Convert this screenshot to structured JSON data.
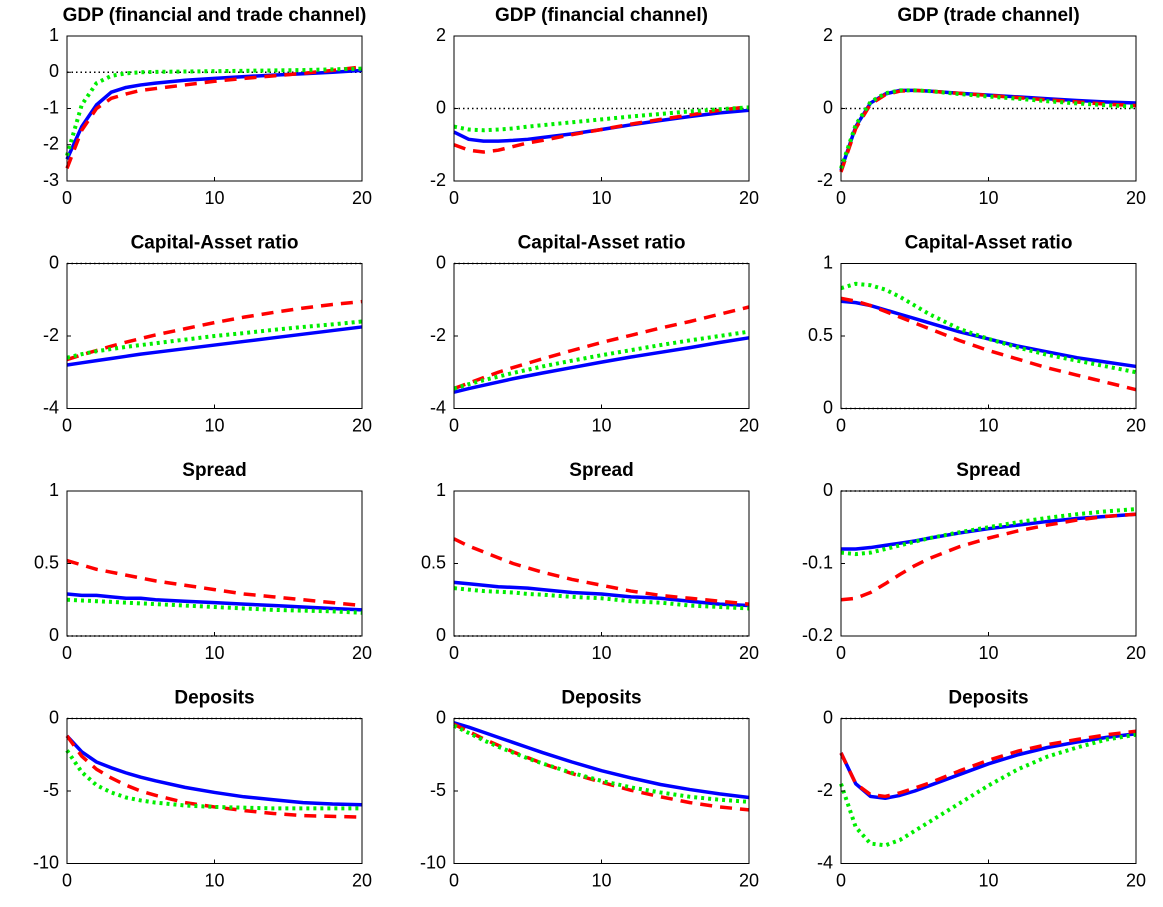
{
  "chart_data": [
    {
      "type": "line",
      "title": "GDP (financial and trade channel)",
      "x": [
        0,
        1,
        2,
        3,
        4,
        5,
        6,
        8,
        10,
        12,
        14,
        16,
        18,
        20
      ],
      "xlim": [
        0,
        20
      ],
      "xticks": [
        0,
        10,
        20
      ],
      "ylim": [
        -3,
        1
      ],
      "yticks": [
        -3,
        -2,
        -1,
        0,
        1
      ],
      "zero_line": true,
      "series": [
        {
          "color": "#0000ff",
          "dash": "solid",
          "values": [
            -2.4,
            -1.5,
            -0.9,
            -0.55,
            -0.42,
            -0.35,
            -0.3,
            -0.22,
            -0.17,
            -0.12,
            -0.08,
            -0.04,
            0.0,
            0.05
          ]
        },
        {
          "color": "#ff0000",
          "dash": "dashed",
          "values": [
            -2.65,
            -1.6,
            -1.0,
            -0.72,
            -0.6,
            -0.5,
            -0.45,
            -0.35,
            -0.25,
            -0.17,
            -0.1,
            -0.03,
            0.05,
            0.15
          ]
        },
        {
          "color": "#00ee00",
          "dash": "dotted",
          "values": [
            -2.3,
            -0.9,
            -0.3,
            -0.1,
            -0.03,
            0,
            0.01,
            0.02,
            0.03,
            0.04,
            0.05,
            0.06,
            0.08,
            0.1
          ]
        }
      ]
    },
    {
      "type": "line",
      "title": "GDP (financial channel)",
      "x": [
        0,
        1,
        2,
        3,
        4,
        5,
        6,
        8,
        10,
        12,
        14,
        16,
        18,
        20
      ],
      "xlim": [
        0,
        20
      ],
      "xticks": [
        0,
        10,
        20
      ],
      "ylim": [
        -2,
        2
      ],
      "yticks": [
        -2,
        0,
        2
      ],
      "zero_line": true,
      "series": [
        {
          "color": "#0000ff",
          "dash": "solid",
          "values": [
            -0.65,
            -0.85,
            -0.9,
            -0.9,
            -0.88,
            -0.85,
            -0.8,
            -0.7,
            -0.58,
            -0.45,
            -0.33,
            -0.22,
            -0.12,
            -0.05
          ]
        },
        {
          "color": "#ff0000",
          "dash": "dashed",
          "values": [
            -1.0,
            -1.15,
            -1.2,
            -1.15,
            -1.05,
            -0.95,
            -0.88,
            -0.72,
            -0.58,
            -0.43,
            -0.3,
            -0.18,
            -0.05,
            0.05
          ]
        },
        {
          "color": "#00ee00",
          "dash": "dotted",
          "values": [
            -0.5,
            -0.58,
            -0.6,
            -0.58,
            -0.55,
            -0.5,
            -0.46,
            -0.38,
            -0.3,
            -0.22,
            -0.15,
            -0.08,
            -0.02,
            0.03
          ]
        }
      ]
    },
    {
      "type": "line",
      "title": "GDP (trade channel)",
      "x": [
        0,
        1,
        2,
        3,
        4,
        5,
        6,
        8,
        10,
        12,
        14,
        16,
        18,
        20
      ],
      "xlim": [
        0,
        20
      ],
      "xticks": [
        0,
        10,
        20
      ],
      "ylim": [
        -2,
        2
      ],
      "yticks": [
        -2,
        0,
        2
      ],
      "zero_line": true,
      "series": [
        {
          "color": "#0000ff",
          "dash": "solid",
          "values": [
            -1.7,
            -0.5,
            0.15,
            0.4,
            0.5,
            0.5,
            0.48,
            0.42,
            0.37,
            0.32,
            0.27,
            0.22,
            0.18,
            0.15
          ]
        },
        {
          "color": "#ff0000",
          "dash": "dashed",
          "values": [
            -1.75,
            -0.55,
            0.12,
            0.38,
            0.48,
            0.5,
            0.48,
            0.42,
            0.36,
            0.3,
            0.24,
            0.18,
            0.12,
            0.08
          ]
        },
        {
          "color": "#00ee00",
          "dash": "dotted",
          "values": [
            -1.65,
            -0.45,
            0.18,
            0.42,
            0.5,
            0.5,
            0.48,
            0.4,
            0.33,
            0.27,
            0.2,
            0.14,
            0.09,
            0.05
          ]
        }
      ]
    },
    {
      "type": "line",
      "title": "Capital-Asset ratio",
      "x": [
        0,
        1,
        2,
        3,
        4,
        5,
        6,
        8,
        10,
        12,
        14,
        16,
        18,
        20
      ],
      "xlim": [
        0,
        20
      ],
      "xticks": [
        0,
        10,
        20
      ],
      "ylim": [
        -4,
        0
      ],
      "yticks": [
        -4,
        -2,
        0
      ],
      "zero_line": true,
      "series": [
        {
          "color": "#0000ff",
          "dash": "solid",
          "values": [
            -2.8,
            -2.74,
            -2.68,
            -2.62,
            -2.56,
            -2.5,
            -2.45,
            -2.35,
            -2.25,
            -2.15,
            -2.05,
            -1.95,
            -1.85,
            -1.75
          ]
        },
        {
          "color": "#ff0000",
          "dash": "dashed",
          "values": [
            -2.65,
            -2.52,
            -2.4,
            -2.28,
            -2.17,
            -2.07,
            -1.97,
            -1.8,
            -1.63,
            -1.48,
            -1.35,
            -1.23,
            -1.13,
            -1.05
          ]
        },
        {
          "color": "#00ee00",
          "dash": "dotted",
          "values": [
            -2.6,
            -2.5,
            -2.42,
            -2.36,
            -2.3,
            -2.25,
            -2.2,
            -2.1,
            -2.0,
            -1.92,
            -1.83,
            -1.75,
            -1.68,
            -1.6
          ]
        }
      ]
    },
    {
      "type": "line",
      "title": "Capital-Asset ratio",
      "x": [
        0,
        1,
        2,
        3,
        4,
        5,
        6,
        8,
        10,
        12,
        14,
        16,
        18,
        20
      ],
      "xlim": [
        0,
        20
      ],
      "xticks": [
        0,
        10,
        20
      ],
      "ylim": [
        -4,
        0
      ],
      "yticks": [
        -4,
        -2,
        0
      ],
      "zero_line": true,
      "series": [
        {
          "color": "#0000ff",
          "dash": "solid",
          "values": [
            -3.55,
            -3.45,
            -3.36,
            -3.27,
            -3.18,
            -3.1,
            -3.02,
            -2.87,
            -2.72,
            -2.58,
            -2.45,
            -2.32,
            -2.18,
            -2.05
          ]
        },
        {
          "color": "#ff0000",
          "dash": "dashed",
          "values": [
            -3.45,
            -3.3,
            -3.15,
            -3.0,
            -2.87,
            -2.75,
            -2.63,
            -2.4,
            -2.18,
            -1.98,
            -1.78,
            -1.6,
            -1.4,
            -1.2
          ]
        },
        {
          "color": "#00ee00",
          "dash": "dotted",
          "values": [
            -3.45,
            -3.33,
            -3.22,
            -3.12,
            -3.02,
            -2.93,
            -2.84,
            -2.68,
            -2.53,
            -2.39,
            -2.25,
            -2.12,
            -2.0,
            -1.88
          ]
        }
      ]
    },
    {
      "type": "line",
      "title": "Capital-Asset ratio",
      "x": [
        0,
        1,
        2,
        3,
        4,
        5,
        6,
        8,
        10,
        12,
        14,
        16,
        18,
        20
      ],
      "xlim": [
        0,
        20
      ],
      "xticks": [
        0,
        10,
        20
      ],
      "ylim": [
        0,
        1
      ],
      "yticks": [
        0,
        0.5,
        1
      ],
      "zero_line": true,
      "series": [
        {
          "color": "#0000ff",
          "dash": "solid",
          "values": [
            0.74,
            0.73,
            0.71,
            0.68,
            0.65,
            0.62,
            0.59,
            0.53,
            0.48,
            0.43,
            0.39,
            0.35,
            0.32,
            0.29
          ]
        },
        {
          "color": "#ff0000",
          "dash": "dashed",
          "values": [
            0.76,
            0.74,
            0.71,
            0.67,
            0.63,
            0.59,
            0.55,
            0.47,
            0.4,
            0.34,
            0.28,
            0.23,
            0.18,
            0.13
          ]
        },
        {
          "color": "#00ee00",
          "dash": "dotted",
          "values": [
            0.83,
            0.86,
            0.85,
            0.82,
            0.77,
            0.71,
            0.65,
            0.55,
            0.48,
            0.42,
            0.37,
            0.33,
            0.29,
            0.25
          ]
        }
      ]
    },
    {
      "type": "line",
      "title": "Spread",
      "x": [
        0,
        1,
        2,
        3,
        4,
        5,
        6,
        8,
        10,
        12,
        14,
        16,
        18,
        20
      ],
      "xlim": [
        0,
        20
      ],
      "xticks": [
        0,
        10,
        20
      ],
      "ylim": [
        0,
        1
      ],
      "yticks": [
        0,
        0.5,
        1
      ],
      "zero_line": true,
      "series": [
        {
          "color": "#0000ff",
          "dash": "solid",
          "values": [
            0.29,
            0.28,
            0.28,
            0.27,
            0.26,
            0.26,
            0.25,
            0.24,
            0.23,
            0.22,
            0.21,
            0.2,
            0.19,
            0.18
          ]
        },
        {
          "color": "#ff0000",
          "dash": "dashed",
          "values": [
            0.52,
            0.49,
            0.46,
            0.44,
            0.42,
            0.4,
            0.38,
            0.35,
            0.32,
            0.29,
            0.27,
            0.25,
            0.23,
            0.21
          ]
        },
        {
          "color": "#00ee00",
          "dash": "dotted",
          "values": [
            0.25,
            0.245,
            0.24,
            0.235,
            0.23,
            0.225,
            0.22,
            0.21,
            0.2,
            0.19,
            0.18,
            0.175,
            0.17,
            0.16
          ]
        }
      ]
    },
    {
      "type": "line",
      "title": "Spread",
      "x": [
        0,
        1,
        2,
        3,
        4,
        5,
        6,
        8,
        10,
        12,
        14,
        16,
        18,
        20
      ],
      "xlim": [
        0,
        20
      ],
      "xticks": [
        0,
        10,
        20
      ],
      "ylim": [
        0,
        1
      ],
      "yticks": [
        0,
        0.5,
        1
      ],
      "zero_line": true,
      "series": [
        {
          "color": "#0000ff",
          "dash": "solid",
          "values": [
            0.37,
            0.36,
            0.35,
            0.34,
            0.335,
            0.33,
            0.32,
            0.3,
            0.29,
            0.27,
            0.26,
            0.24,
            0.22,
            0.21
          ]
        },
        {
          "color": "#ff0000",
          "dash": "dashed",
          "values": [
            0.67,
            0.62,
            0.58,
            0.54,
            0.5,
            0.47,
            0.44,
            0.39,
            0.35,
            0.31,
            0.28,
            0.26,
            0.24,
            0.22
          ]
        },
        {
          "color": "#00ee00",
          "dash": "dotted",
          "values": [
            0.33,
            0.32,
            0.31,
            0.305,
            0.3,
            0.29,
            0.285,
            0.27,
            0.26,
            0.24,
            0.23,
            0.21,
            0.2,
            0.19
          ]
        }
      ]
    },
    {
      "type": "line",
      "title": "Spread",
      "x": [
        0,
        1,
        2,
        3,
        4,
        5,
        6,
        8,
        10,
        12,
        14,
        16,
        18,
        20
      ],
      "xlim": [
        0,
        20
      ],
      "xticks": [
        0,
        10,
        20
      ],
      "ylim": [
        -0.2,
        0
      ],
      "yticks": [
        -0.2,
        -0.1,
        0
      ],
      "zero_line": true,
      "series": [
        {
          "color": "#0000ff",
          "dash": "solid",
          "values": [
            -0.08,
            -0.08,
            -0.078,
            -0.075,
            -0.072,
            -0.069,
            -0.065,
            -0.058,
            -0.052,
            -0.047,
            -0.042,
            -0.038,
            -0.035,
            -0.032
          ]
        },
        {
          "color": "#ff0000",
          "dash": "dashed",
          "values": [
            -0.15,
            -0.148,
            -0.14,
            -0.128,
            -0.115,
            -0.103,
            -0.093,
            -0.077,
            -0.065,
            -0.055,
            -0.047,
            -0.04,
            -0.035,
            -0.032
          ]
        },
        {
          "color": "#00ee00",
          "dash": "dotted",
          "values": [
            -0.085,
            -0.087,
            -0.085,
            -0.08,
            -0.075,
            -0.07,
            -0.065,
            -0.057,
            -0.05,
            -0.043,
            -0.037,
            -0.032,
            -0.028,
            -0.025
          ]
        }
      ]
    },
    {
      "type": "line",
      "title": "Deposits",
      "x": [
        0,
        1,
        2,
        3,
        4,
        5,
        6,
        8,
        10,
        12,
        14,
        16,
        18,
        20
      ],
      "xlim": [
        0,
        20
      ],
      "xticks": [
        0,
        10,
        20
      ],
      "ylim": [
        -10,
        0
      ],
      "yticks": [
        -10,
        -5,
        0
      ],
      "zero_line": true,
      "series": [
        {
          "color": "#0000ff",
          "dash": "solid",
          "values": [
            -1.2,
            -2.3,
            -3.0,
            -3.4,
            -3.75,
            -4.05,
            -4.3,
            -4.75,
            -5.1,
            -5.4,
            -5.6,
            -5.8,
            -5.9,
            -5.95
          ]
        },
        {
          "color": "#ff0000",
          "dash": "dashed",
          "values": [
            -1.2,
            -2.6,
            -3.5,
            -4.1,
            -4.6,
            -5.0,
            -5.3,
            -5.8,
            -6.1,
            -6.35,
            -6.55,
            -6.7,
            -6.75,
            -6.8
          ]
        },
        {
          "color": "#00ee00",
          "dash": "dotted",
          "values": [
            -2.2,
            -3.7,
            -4.6,
            -5.1,
            -5.45,
            -5.65,
            -5.8,
            -6.0,
            -6.1,
            -6.15,
            -6.2,
            -6.2,
            -6.2,
            -6.2
          ]
        }
      ]
    },
    {
      "type": "line",
      "title": "Deposits",
      "x": [
        0,
        1,
        2,
        3,
        4,
        5,
        6,
        8,
        10,
        12,
        14,
        16,
        18,
        20
      ],
      "xlim": [
        0,
        20
      ],
      "xticks": [
        0,
        10,
        20
      ],
      "ylim": [
        -10,
        0
      ],
      "yticks": [
        -10,
        -5,
        0
      ],
      "zero_line": true,
      "series": [
        {
          "color": "#0000ff",
          "dash": "solid",
          "values": [
            -0.3,
            -0.6,
            -0.95,
            -1.3,
            -1.65,
            -2.0,
            -2.35,
            -3.0,
            -3.6,
            -4.1,
            -4.55,
            -4.9,
            -5.2,
            -5.45
          ]
        },
        {
          "color": "#ff0000",
          "dash": "dashed",
          "values": [
            -0.4,
            -0.9,
            -1.4,
            -1.85,
            -2.3,
            -2.7,
            -3.1,
            -3.8,
            -4.4,
            -4.95,
            -5.4,
            -5.8,
            -6.1,
            -6.3
          ]
        },
        {
          "color": "#00ee00",
          "dash": "dotted",
          "values": [
            -0.5,
            -1.0,
            -1.5,
            -1.95,
            -2.35,
            -2.75,
            -3.1,
            -3.75,
            -4.3,
            -4.75,
            -5.1,
            -5.4,
            -5.6,
            -5.75
          ]
        }
      ]
    },
    {
      "type": "line",
      "title": "Deposits",
      "x": [
        0,
        1,
        2,
        3,
        4,
        5,
        6,
        8,
        10,
        12,
        14,
        16,
        18,
        20
      ],
      "xlim": [
        0,
        20
      ],
      "xticks": [
        0,
        10,
        20
      ],
      "ylim": [
        -4,
        0
      ],
      "yticks": [
        -4,
        -2,
        0
      ],
      "zero_line": true,
      "series": [
        {
          "color": "#0000ff",
          "dash": "solid",
          "values": [
            -0.95,
            -1.8,
            -2.15,
            -2.2,
            -2.12,
            -2.0,
            -1.85,
            -1.55,
            -1.25,
            -1.0,
            -0.8,
            -0.65,
            -0.52,
            -0.42
          ]
        },
        {
          "color": "#ff0000",
          "dash": "dashed",
          "values": [
            -0.95,
            -1.8,
            -2.1,
            -2.15,
            -2.05,
            -1.92,
            -1.78,
            -1.45,
            -1.15,
            -0.9,
            -0.72,
            -0.58,
            -0.45,
            -0.35
          ]
        },
        {
          "color": "#00ee00",
          "dash": "dotted",
          "values": [
            -1.8,
            -3.0,
            -3.45,
            -3.5,
            -3.35,
            -3.1,
            -2.85,
            -2.35,
            -1.85,
            -1.4,
            -1.05,
            -0.8,
            -0.58,
            -0.45
          ]
        }
      ]
    }
  ]
}
